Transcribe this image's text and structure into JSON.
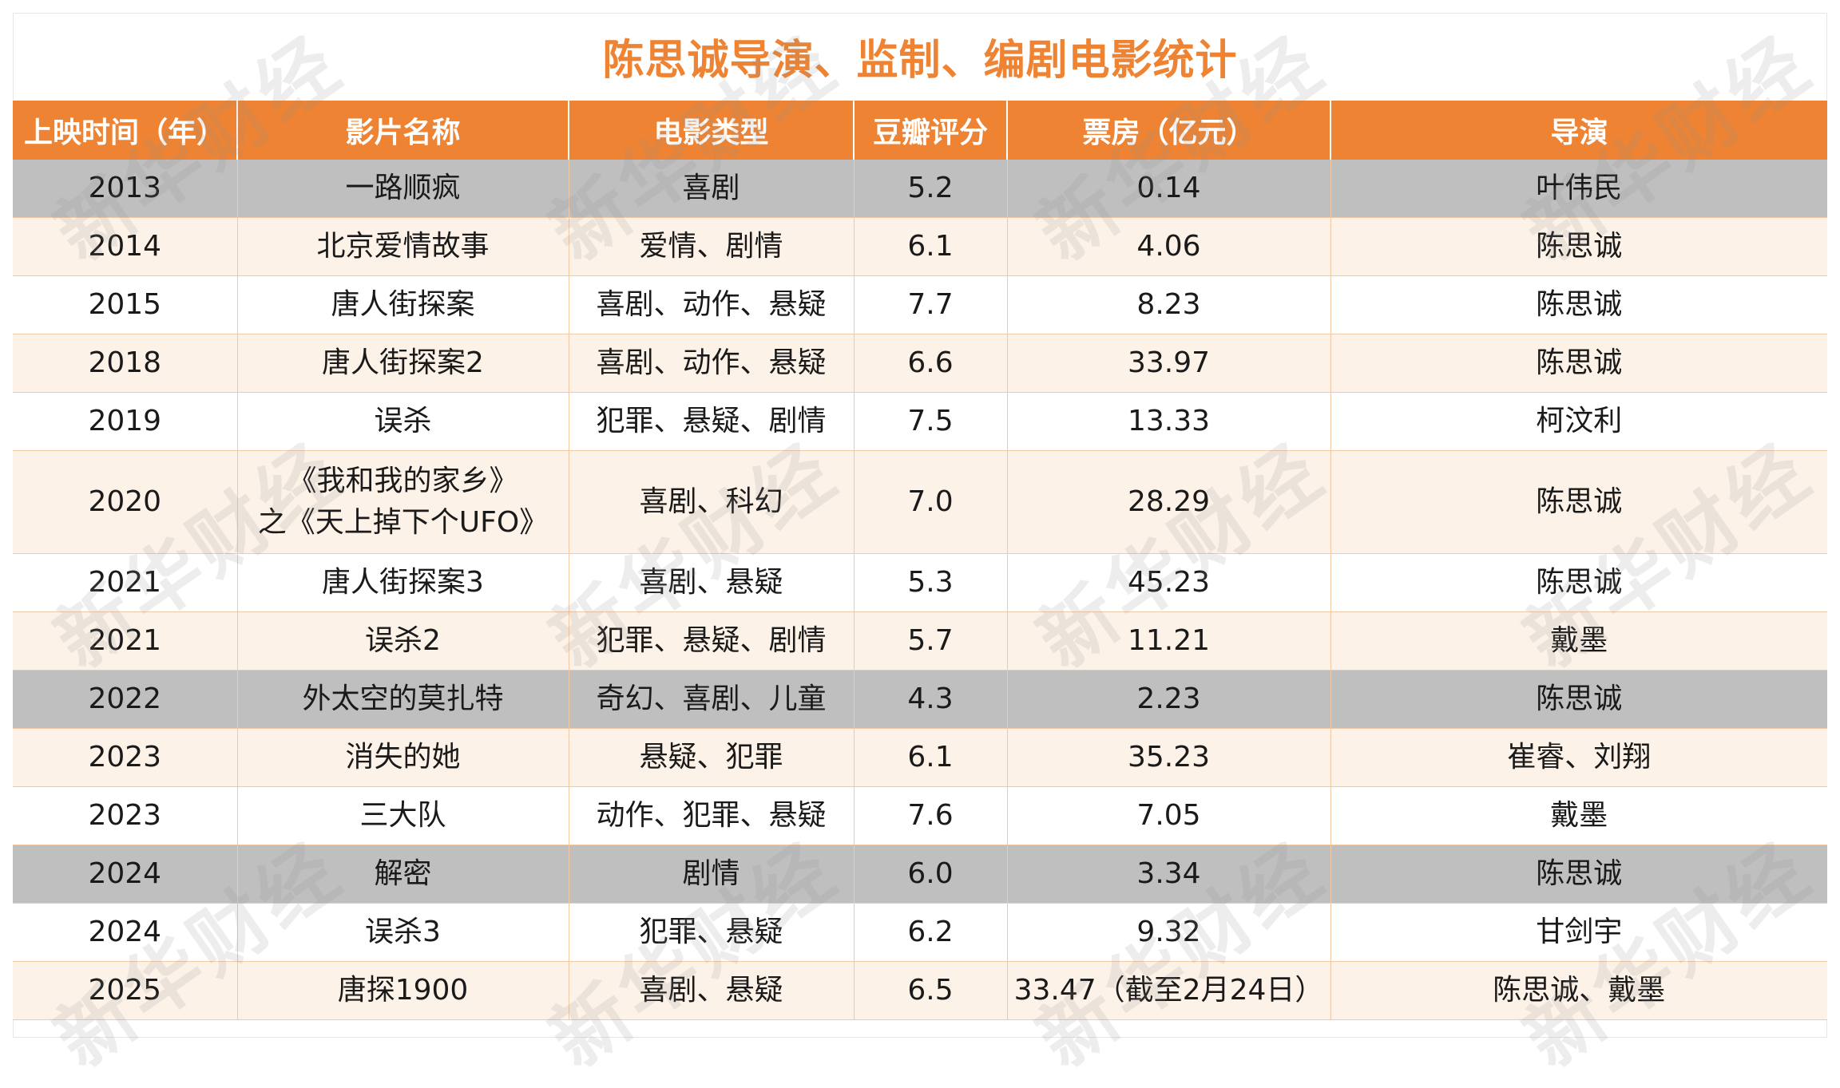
{
  "title": "陈思诚导演、监制、编剧电影统计",
  "headers": [
    "上映时间（年）",
    "影片名称",
    "电影类型",
    "豆瓣评分",
    "票房（亿元）",
    "导演"
  ],
  "rows": [
    {
      "year": "2013",
      "name": "一路顺疯",
      "name2": "",
      "genre": "喜剧",
      "rating": "5.2",
      "box": "0.14",
      "director": "叶伟民",
      "style": "gray"
    },
    {
      "year": "2014",
      "name": "北京爱情故事",
      "name2": "",
      "genre": "爱情、剧情",
      "rating": "6.1",
      "box": "4.06",
      "director": "陈思诚",
      "style": "cream"
    },
    {
      "year": "2015",
      "name": "唐人街探案",
      "name2": "",
      "genre": "喜剧、动作、悬疑",
      "rating": "7.7",
      "box": "8.23",
      "director": "陈思诚",
      "style": "white"
    },
    {
      "year": "2018",
      "name": "唐人街探案2",
      "name2": "",
      "genre": "喜剧、动作、悬疑",
      "rating": "6.6",
      "box": "33.97",
      "director": "陈思诚",
      "style": "cream"
    },
    {
      "year": "2019",
      "name": "误杀",
      "name2": "",
      "genre": "犯罪、悬疑、剧情",
      "rating": "7.5",
      "box": "13.33",
      "director": "柯汶利",
      "style": "white"
    },
    {
      "year": "2020",
      "name": "《我和我的家乡》",
      "name2": "之《天上掉下个UFO》",
      "genre": "喜剧、科幻",
      "rating": "7.0",
      "box": "28.29",
      "director": "陈思诚",
      "style": "cream"
    },
    {
      "year": "2021",
      "name": "唐人街探案3",
      "name2": "",
      "genre": "喜剧、悬疑",
      "rating": "5.3",
      "box": "45.23",
      "director": "陈思诚",
      "style": "white"
    },
    {
      "year": "2021",
      "name": "误杀2",
      "name2": "",
      "genre": "犯罪、悬疑、剧情",
      "rating": "5.7",
      "box": "11.21",
      "director": "戴墨",
      "style": "cream"
    },
    {
      "year": "2022",
      "name": "外太空的莫扎特",
      "name2": "",
      "genre": "奇幻、喜剧、儿童",
      "rating": "4.3",
      "box": "2.23",
      "director": "陈思诚",
      "style": "gray"
    },
    {
      "year": "2023",
      "name": "消失的她",
      "name2": "",
      "genre": "悬疑、犯罪",
      "rating": "6.1",
      "box": "35.23",
      "director": "崔睿、刘翔",
      "style": "cream"
    },
    {
      "year": "2023",
      "name": "三大队",
      "name2": "",
      "genre": "动作、犯罪、悬疑",
      "rating": "7.6",
      "box": "7.05",
      "director": "戴墨",
      "style": "white"
    },
    {
      "year": "2024",
      "name": "解密",
      "name2": "",
      "genre": "剧情",
      "rating": "6.0",
      "box": "3.34",
      "director": "陈思诚",
      "style": "gray"
    },
    {
      "year": "2024",
      "name": "误杀3",
      "name2": "",
      "genre": "犯罪、悬疑",
      "rating": "6.2",
      "box": "9.32",
      "director": "甘剑宇",
      "style": "white"
    },
    {
      "year": "2025",
      "name": "唐探1900",
      "name2": "",
      "genre": "喜剧、悬疑",
      "rating": "6.5",
      "box": "33.47（截至2月24日）",
      "director": "陈思诚、戴墨",
      "style": "cream"
    }
  ],
  "watermark": "新华财经",
  "colors": {
    "accent": "#EE8433",
    "row_cream": "#FDF2E8",
    "row_gray": "#BFBFBF"
  }
}
